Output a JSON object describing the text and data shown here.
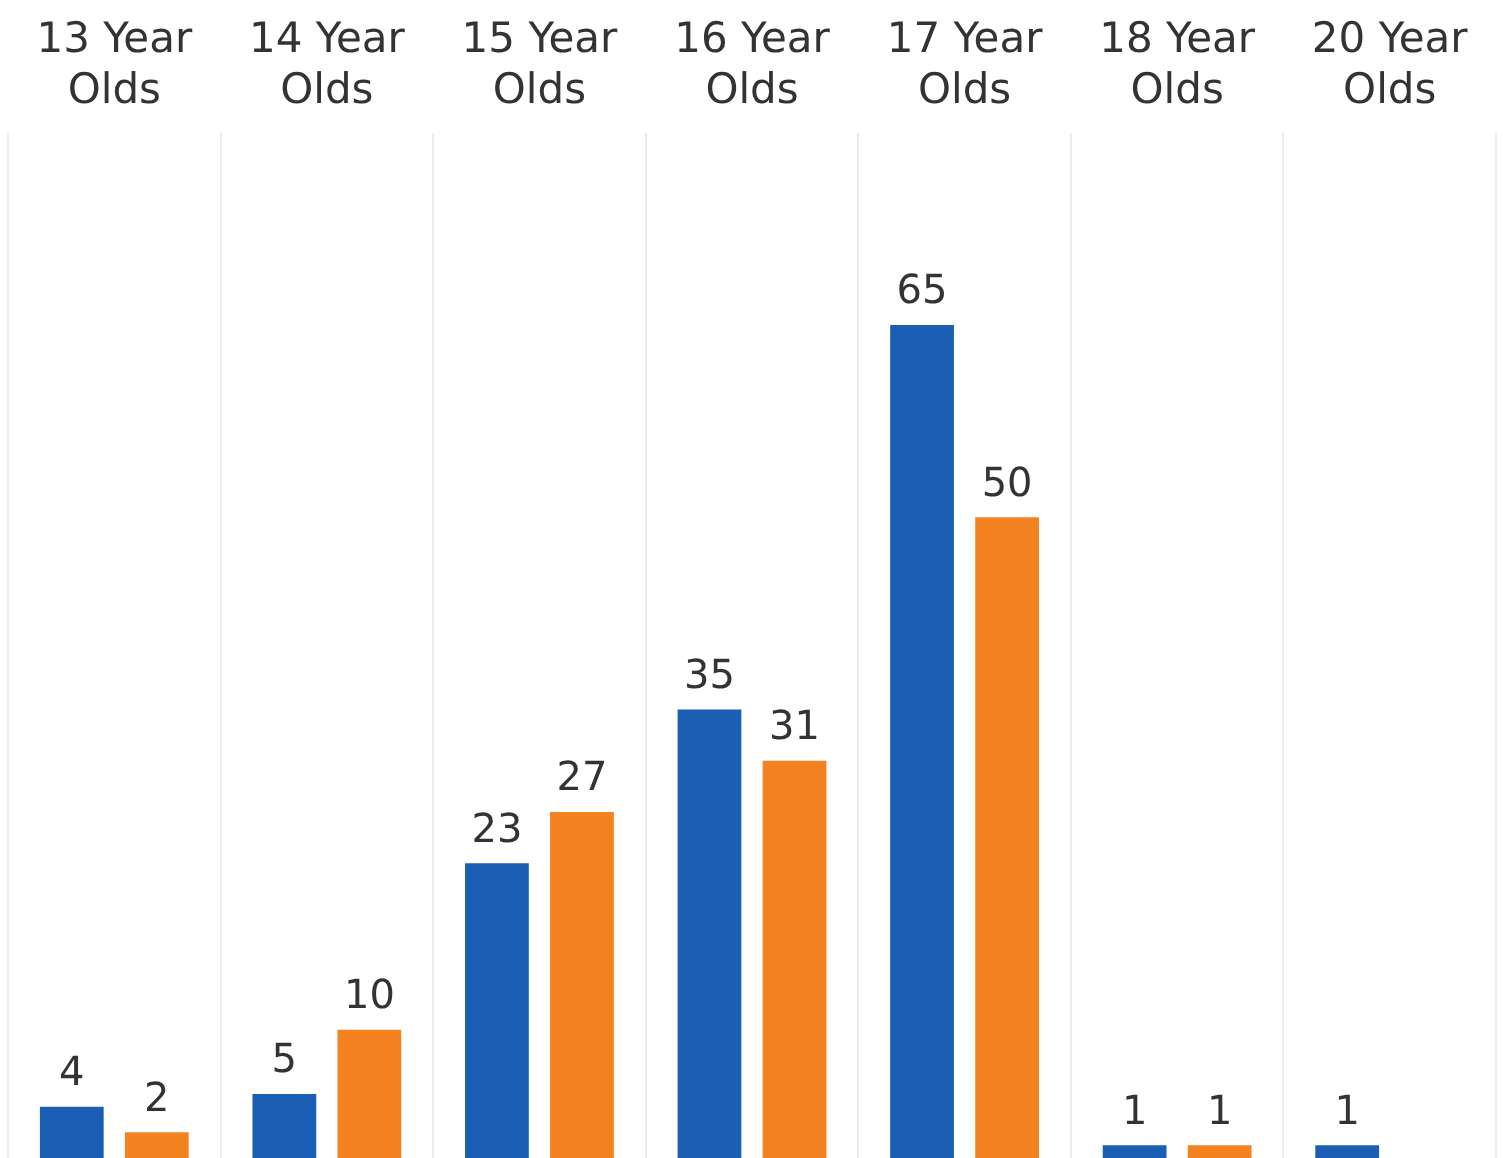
{
  "chart_data": {
    "type": "bar",
    "categories": [
      "13 Year Olds",
      "14 Year Olds",
      "15 Year Olds",
      "16 Year Olds",
      "17 Year Olds",
      "18 Year Olds",
      "20 Year Olds"
    ],
    "series": [
      {
        "color": "#1a5fb4",
        "values": [
          4,
          5,
          23,
          35,
          65,
          1,
          1
        ]
      },
      {
        "color": "#f58220",
        "values": [
          2,
          10,
          27,
          31,
          50,
          1,
          null
        ]
      }
    ],
    "data_labels": true,
    "grid": "x",
    "legend": false
  }
}
